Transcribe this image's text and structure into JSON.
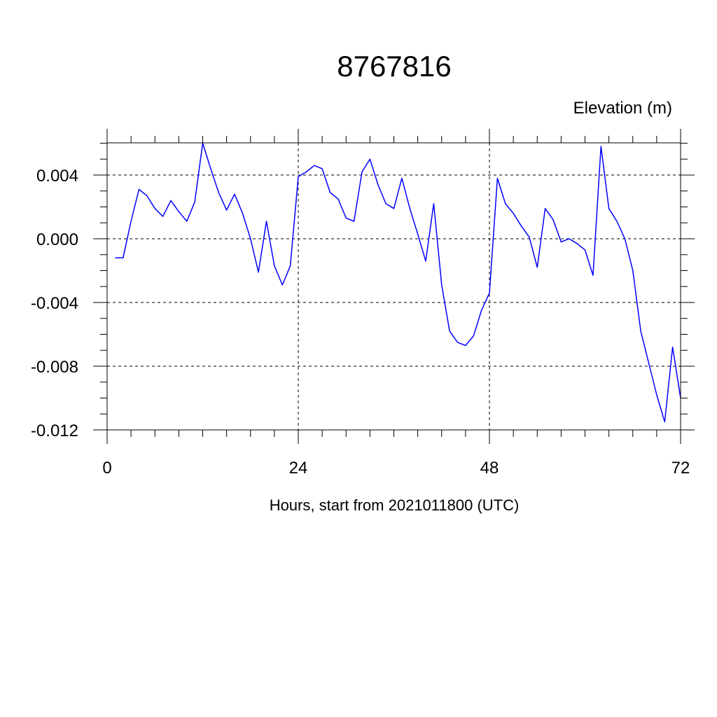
{
  "chart_data": {
    "type": "line",
    "title": "8767816",
    "ylabel": "Elevation (m)",
    "xlabel": "Hours, start from 2021011800 (UTC)",
    "xlim": [
      0,
      72
    ],
    "ylim": [
      -0.012,
      0.006
    ],
    "x_ticks": [
      0,
      24,
      48,
      72
    ],
    "x_tick_labels": [
      "0",
      "24",
      "48",
      "72"
    ],
    "y_ticks": [
      0.004,
      0.0,
      -0.004,
      -0.008,
      -0.012
    ],
    "y_tick_labels": [
      "0.004",
      "0.000",
      "-0.004",
      "-0.008",
      "-0.012"
    ],
    "grid": true,
    "colors": {
      "line": "#0000ff",
      "axis": "#000000",
      "grid": "#000000"
    },
    "series": [
      {
        "x": [
          1,
          2,
          3,
          4,
          5,
          6,
          7,
          8,
          9,
          10,
          11,
          12,
          13,
          14,
          15,
          16,
          17,
          18,
          19,
          20,
          21,
          22,
          23,
          24,
          25,
          26,
          27,
          28,
          29,
          30,
          31,
          32,
          33,
          34,
          35,
          36,
          37,
          38,
          39,
          40,
          41,
          42,
          43,
          44,
          45,
          46,
          47,
          48,
          49,
          50,
          51,
          52,
          53,
          54,
          55,
          56,
          57,
          58,
          59,
          60,
          61,
          62,
          63,
          64,
          65,
          66,
          67,
          68,
          69,
          70,
          71,
          72
        ],
        "values": [
          -0.0012,
          -0.0012,
          0.0011,
          0.0031,
          0.0027,
          0.0019,
          0.0014,
          0.0024,
          0.0017,
          0.0011,
          0.0023,
          0.006,
          0.0044,
          0.0029,
          0.0018,
          0.0028,
          0.0016,
          0.0,
          -0.0021,
          0.0011,
          -0.0017,
          -0.0029,
          -0.0017,
          0.0039,
          0.0042,
          0.0046,
          0.0044,
          0.0029,
          0.0025,
          0.0013,
          0.0011,
          0.0042,
          0.005,
          0.0034,
          0.0022,
          0.0019,
          0.0038,
          0.0019,
          0.0003,
          -0.0014,
          0.0022,
          -0.0029,
          -0.0058,
          -0.0065,
          -0.0067,
          -0.0061,
          -0.0045,
          -0.0034,
          0.0038,
          0.0022,
          0.0016,
          0.0008,
          0.0001,
          -0.0018,
          0.0019,
          0.0012,
          -0.0002,
          0.0,
          -0.0003,
          -0.0007,
          -0.0023,
          0.0058,
          0.0019,
          0.0011,
          0.0,
          -0.002,
          -0.0058,
          -0.0078,
          -0.0098,
          -0.0115,
          -0.0068,
          -0.01
        ]
      }
    ]
  }
}
